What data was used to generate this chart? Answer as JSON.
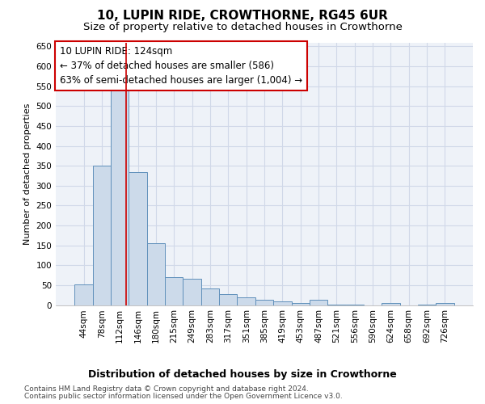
{
  "title1": "10, LUPIN RIDE, CROWTHORNE, RG45 6UR",
  "title2": "Size of property relative to detached houses in Crowthorne",
  "xlabel": "Distribution of detached houses by size in Crowthorne",
  "ylabel": "Number of detached properties",
  "footnote1": "Contains HM Land Registry data © Crown copyright and database right 2024.",
  "footnote2": "Contains public sector information licensed under the Open Government Licence v3.0.",
  "annotation_line1": "10 LUPIN RIDE: 124sqm",
  "annotation_line2": "← 37% of detached houses are smaller (586)",
  "annotation_line3": "63% of semi-detached houses are larger (1,004) →",
  "bar_color": "#ccdaea",
  "bar_edge_color": "#6090bb",
  "vline_color": "#cc0000",
  "grid_color": "#d0d8e8",
  "bg_color": "#eef2f8",
  "categories": [
    "44sqm",
    "78sqm",
    "112sqm",
    "146sqm",
    "180sqm",
    "215sqm",
    "249sqm",
    "283sqm",
    "317sqm",
    "351sqm",
    "385sqm",
    "419sqm",
    "453sqm",
    "487sqm",
    "521sqm",
    "556sqm",
    "590sqm",
    "624sqm",
    "658sqm",
    "692sqm",
    "726sqm"
  ],
  "values": [
    52,
    350,
    540,
    335,
    155,
    70,
    65,
    42,
    28,
    20,
    13,
    10,
    5,
    13,
    2,
    2,
    0,
    5,
    0,
    2,
    5
  ],
  "vline_x": 2.35,
  "ylim": [
    0,
    660
  ],
  "yticks": [
    0,
    50,
    100,
    150,
    200,
    250,
    300,
    350,
    400,
    450,
    500,
    550,
    600,
    650
  ],
  "title1_fontsize": 11,
  "title2_fontsize": 9.5,
  "xlabel_fontsize": 9,
  "ylabel_fontsize": 8,
  "tick_fontsize": 7.5,
  "annot_fontsize": 8.5,
  "footnote_fontsize": 6.5
}
